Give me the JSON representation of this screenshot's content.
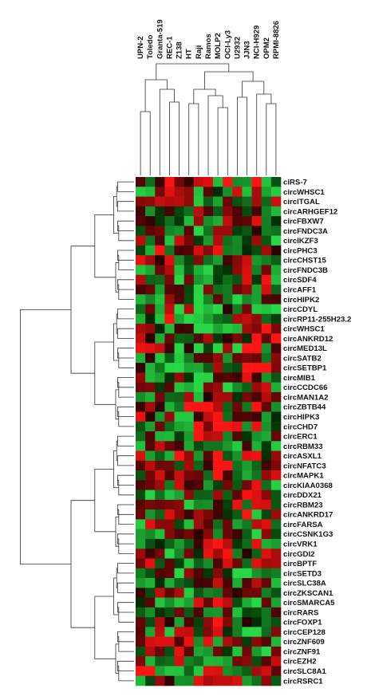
{
  "chart_data": {
    "type": "heatmap",
    "title": "",
    "xlabel": "",
    "ylabel": "",
    "columns": [
      "UPN-2",
      "Toledo",
      "Granta-519",
      "REC-1",
      "Z138",
      "HT",
      "Raji",
      "Ramos",
      "MOLP2",
      "OCI-Ly3",
      "U2932",
      "JJN3",
      "NCI-H929",
      "OPM2",
      "RPMI-8826"
    ],
    "rows": [
      "ciRS-7",
      "circWHSC1",
      "circITGAL",
      "circARHGEF12",
      "circFBXW7",
      "circFNDC3A",
      "circIKZF3",
      "circPHC3",
      "circCHST15",
      "circFNDC3B",
      "circSDF4",
      "circAFF1",
      "circHIPK2",
      "circCDYL",
      "circRP11-255H23.2",
      "circWHSC1",
      "circANKRD12",
      "circMED13L",
      "circSATB2",
      "circSETBP1",
      "circMIB1",
      "circCCDC66",
      "circMAN1A2",
      "circZBTB44",
      "circHIPK3",
      "circCHD7",
      "circERC1",
      "circRBM33",
      "circASXL1",
      "circNFATC3",
      "circMAPK1",
      "circKIAA0368",
      "circDDX21",
      "circRBM23",
      "circANKRD17",
      "circFARSA",
      "circCSNK1G3",
      "circVRK1",
      "circGDI2",
      "circBPTF",
      "circSETD3",
      "circSLC38A",
      "circZKSCAN1",
      "circSMARCA5",
      "circRARS",
      "circFOXP1",
      "circCEP128",
      "circZNF609",
      "circZNF91",
      "circEZH2",
      "circSLC8A1",
      "circRSRC1"
    ],
    "color_scale": {
      "low": "#22c055",
      "mid": "#000000",
      "high": "#ff1a1a"
    },
    "grid": false,
    "dendrograms": [
      "top",
      "left"
    ]
  }
}
